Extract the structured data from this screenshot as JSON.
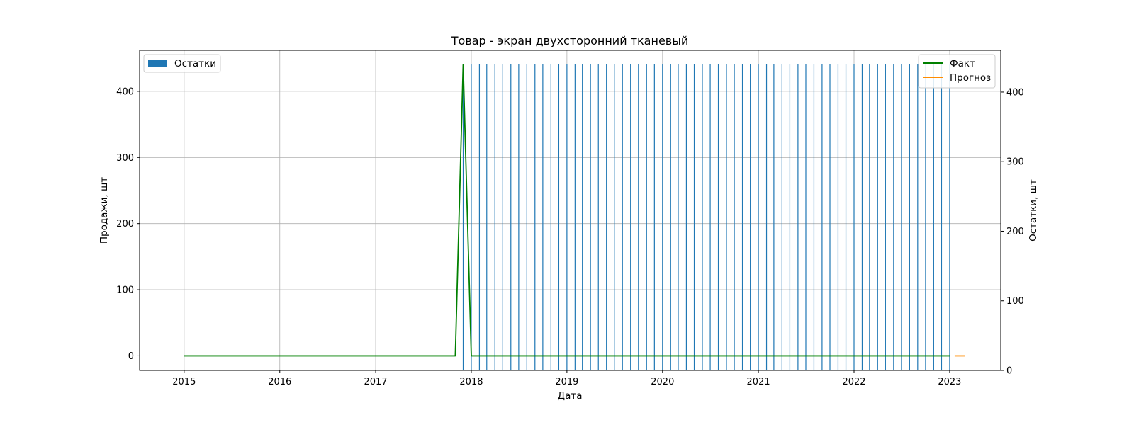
{
  "chart_data": {
    "type": "line",
    "title": "Товар - экран двухсторонний тканевый",
    "xlabel": "Дата",
    "ylabel_left": "Продажи, шт",
    "ylabel_right": "Остатки, шт",
    "x_ticks": [
      "2015",
      "2016",
      "2017",
      "2018",
      "2019",
      "2020",
      "2021",
      "2022",
      "2023"
    ],
    "xlim": [
      "2014-07-15",
      "2023-07-15"
    ],
    "ylim_left": [
      -22,
      462
    ],
    "yticks_left": [
      0,
      100,
      200,
      300,
      400
    ],
    "ylim_right": [
      0,
      460
    ],
    "yticks_right": [
      0,
      100,
      200,
      300,
      400
    ],
    "grid": true,
    "series": [
      {
        "name": "Факт",
        "axis": "left",
        "kind": "line",
        "color": "#008000",
        "points": [
          {
            "x": "2015-01-01",
            "y": 0
          },
          {
            "x": "2017-11-01",
            "y": 0
          },
          {
            "x": "2017-12-01",
            "y": 440
          },
          {
            "x": "2018-01-01",
            "y": 0
          },
          {
            "x": "2023-01-01",
            "y": 0
          }
        ]
      },
      {
        "name": "Прогноз",
        "axis": "left",
        "kind": "line",
        "color": "#ff8c00",
        "points": [
          {
            "x": "2023-01-20",
            "y": 0
          },
          {
            "x": "2023-02-28",
            "y": 0
          }
        ]
      },
      {
        "name": "Остатки",
        "axis": "right",
        "kind": "bar",
        "color": "#1f77b4",
        "value": 440,
        "start": "2017-12-01",
        "end": "2023-01-01",
        "step_months": 1
      }
    ],
    "legend_left": {
      "position": "upper-left",
      "entries": [
        "Остатки"
      ]
    },
    "legend_right": {
      "position": "upper-right",
      "entries": [
        "Факт",
        "Прогноз"
      ]
    }
  }
}
